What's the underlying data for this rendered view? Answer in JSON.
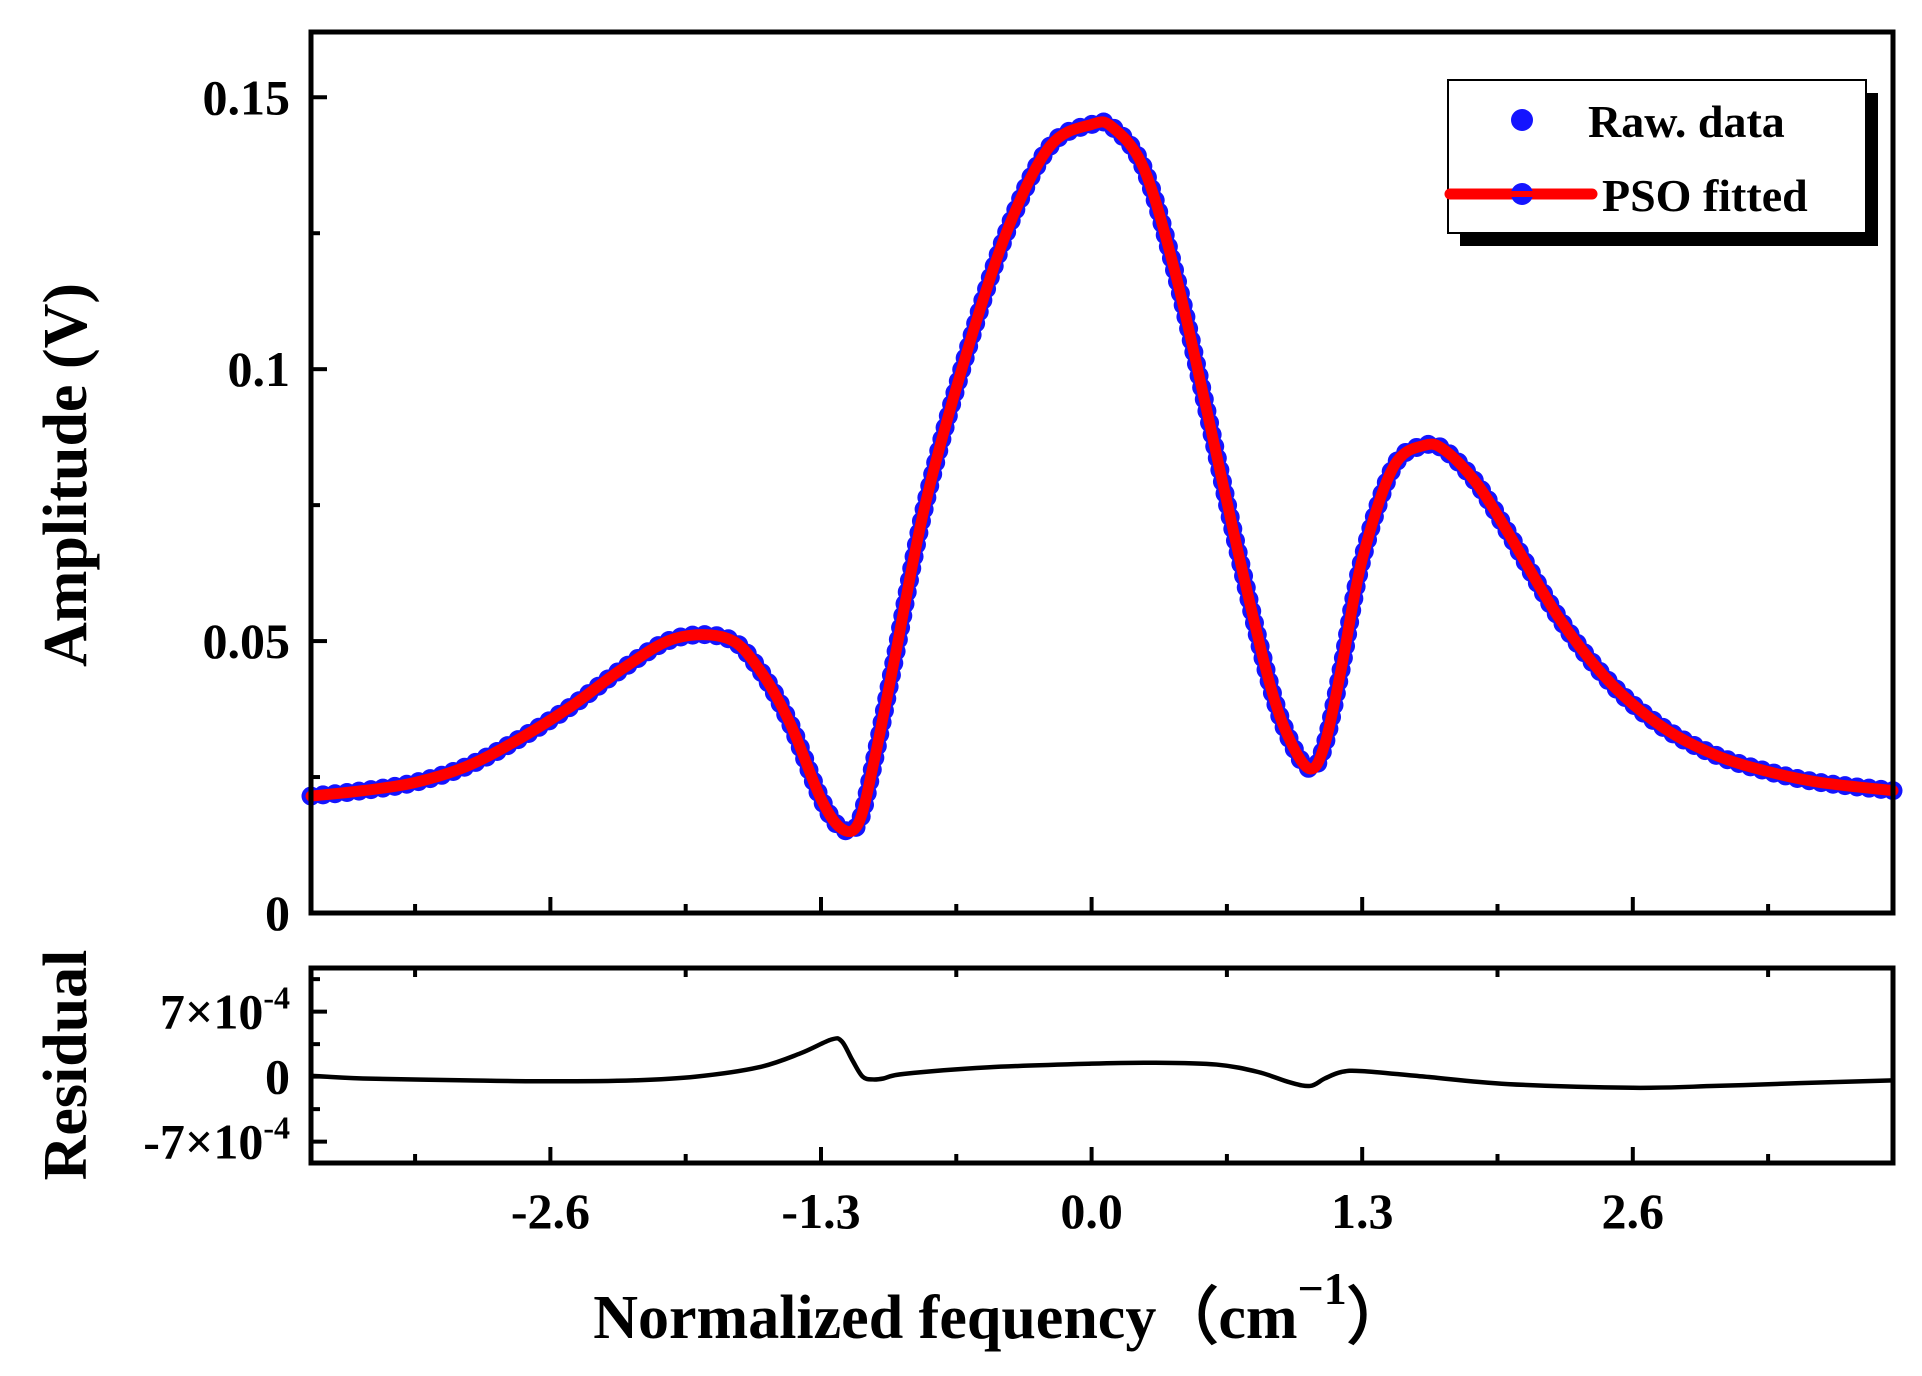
{
  "chart_data": [
    {
      "type": "line",
      "panel": "main",
      "ylabel": "Amplitude (V)",
      "xlim": [
        -3.75,
        3.85
      ],
      "ylim": [
        0,
        0.162
      ],
      "ytick_values": [
        0,
        0.05,
        0.1,
        0.15
      ],
      "ytick_labels": [
        "0",
        "0.05",
        "0.1",
        "0.15"
      ],
      "xticks": [
        -2.6,
        -1.3,
        0.0,
        1.3,
        2.6
      ],
      "legend": {
        "position": "top-right",
        "entries": [
          "Raw. data",
          "PSO fitted"
        ]
      },
      "series": [
        {
          "name": "Raw. data",
          "style": "markers",
          "color": "#1414ff",
          "x": [
            -3.75,
            -3.5,
            -3.25,
            -3.0,
            -2.75,
            -2.5,
            -2.25,
            -2.0,
            -1.75,
            -1.6,
            -1.45,
            -1.3,
            -1.2,
            -1.12,
            -1.05,
            -0.95,
            -0.8,
            -0.6,
            -0.4,
            -0.2,
            0.0,
            0.1,
            0.25,
            0.4,
            0.55,
            0.7,
            0.85,
            0.95,
            1.05,
            1.12,
            1.2,
            1.3,
            1.45,
            1.6,
            1.7,
            1.85,
            2.0,
            2.25,
            2.5,
            2.75,
            3.0,
            3.25,
            3.5,
            3.85
          ],
          "y": [
            0.0215,
            0.0225,
            0.024,
            0.027,
            0.032,
            0.038,
            0.045,
            0.0505,
            0.0505,
            0.045,
            0.035,
            0.021,
            0.0155,
            0.0165,
            0.027,
            0.046,
            0.075,
            0.103,
            0.126,
            0.141,
            0.145,
            0.1445,
            0.137,
            0.118,
            0.093,
            0.067,
            0.043,
            0.032,
            0.0265,
            0.031,
            0.045,
            0.065,
            0.082,
            0.086,
            0.085,
            0.079,
            0.07,
            0.054,
            0.042,
            0.034,
            0.029,
            0.026,
            0.024,
            0.0225
          ]
        },
        {
          "name": "PSO fitted",
          "style": "line",
          "color": "#ff0000",
          "x": [
            -3.75,
            -3.5,
            -3.25,
            -3.0,
            -2.75,
            -2.5,
            -2.25,
            -2.0,
            -1.75,
            -1.6,
            -1.45,
            -1.3,
            -1.2,
            -1.12,
            -1.05,
            -0.95,
            -0.8,
            -0.6,
            -0.4,
            -0.2,
            0.0,
            0.1,
            0.25,
            0.4,
            0.55,
            0.7,
            0.85,
            0.95,
            1.05,
            1.12,
            1.2,
            1.3,
            1.45,
            1.6,
            1.7,
            1.85,
            2.0,
            2.25,
            2.5,
            2.75,
            3.0,
            3.25,
            3.5,
            3.85
          ],
          "y": [
            0.0215,
            0.0225,
            0.024,
            0.027,
            0.032,
            0.038,
            0.045,
            0.0505,
            0.0505,
            0.045,
            0.035,
            0.021,
            0.0155,
            0.0165,
            0.027,
            0.046,
            0.075,
            0.103,
            0.126,
            0.141,
            0.145,
            0.1445,
            0.137,
            0.118,
            0.093,
            0.067,
            0.043,
            0.032,
            0.0265,
            0.031,
            0.045,
            0.065,
            0.082,
            0.086,
            0.085,
            0.079,
            0.07,
            0.054,
            0.042,
            0.034,
            0.029,
            0.026,
            0.024,
            0.0225
          ]
        }
      ]
    },
    {
      "type": "line",
      "panel": "residual",
      "ylabel": "Residual",
      "xlabel": "Normalized fequency（cm",
      "xlabel_superscript": "−1",
      "xlabel_close": "）",
      "xlim": [
        -3.75,
        3.85
      ],
      "ylim": [
        -0.00093,
        0.00117
      ],
      "ytick_values": [
        -0.0007,
        0,
        0.0007
      ],
      "ytick_labels": [
        {
          "mantissa": "-7×10",
          "exponent": "-4"
        },
        {
          "mantissa": "0",
          "exponent": ""
        },
        {
          "mantissa": "7×10",
          "exponent": "-4"
        }
      ],
      "xticks": [
        -2.6,
        -1.3,
        0.0,
        1.3,
        2.6
      ],
      "xtick_labels": [
        "-2.6",
        "-1.3",
        "0.0",
        "1.3",
        "2.6"
      ],
      "series": [
        {
          "name": "Residual",
          "color": "#000000",
          "x": [
            -3.75,
            -3.5,
            -3.0,
            -2.6,
            -2.2,
            -1.9,
            -1.6,
            -1.4,
            -1.25,
            -1.2,
            -1.15,
            -1.1,
            -1.05,
            -1.0,
            -0.9,
            -0.5,
            0.0,
            0.3,
            0.6,
            0.8,
            0.95,
            1.05,
            1.12,
            1.2,
            1.3,
            1.6,
            2.0,
            2.6,
            3.0,
            3.4,
            3.85
          ],
          "y": [
            1e-05,
            -2e-05,
            -4e-05,
            -5e-05,
            -4e-05,
            0.0,
            0.0001,
            0.00025,
            0.0004,
            0.00038,
            0.00018,
            0.0,
            -3e-05,
            -2e-05,
            3e-05,
            0.0001,
            0.00014,
            0.00015,
            0.00013,
            5e-05,
            -6e-05,
            -0.0001,
            -2e-05,
            5e-05,
            6e-05,
            0.0,
            -8e-05,
            -0.00012,
            -0.0001,
            -7e-05,
            -4e-05
          ]
        }
      ]
    }
  ]
}
